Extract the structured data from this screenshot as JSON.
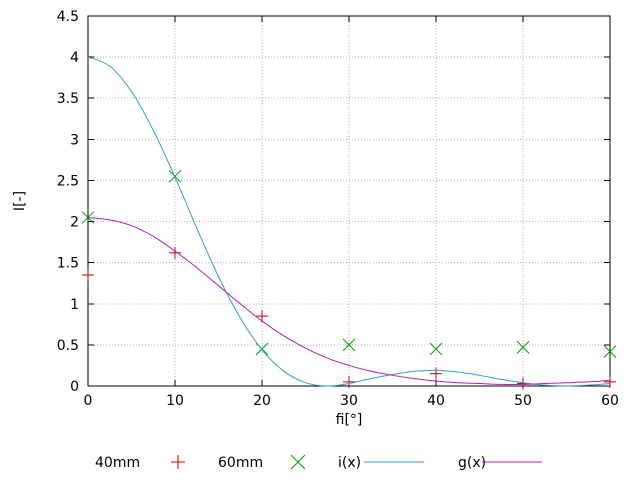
{
  "figure": {
    "background": "#ffffff"
  },
  "chart_data": {
    "type": "line",
    "title": "",
    "xlabel": "fi[°]",
    "ylabel": "I[-]",
    "xlim": [
      0,
      60
    ],
    "ylim": [
      0,
      4.5
    ],
    "xticks": [
      0,
      10,
      20,
      30,
      40,
      50,
      60
    ],
    "yticks": [
      0,
      0.5,
      1,
      1.5,
      2,
      2.5,
      3,
      3.5,
      4,
      4.5
    ],
    "grid": true,
    "legend_position": "bottom",
    "colors": {
      "axis": "#000000",
      "grid": "#b0b0b0"
    },
    "series": [
      {
        "name": "40mm",
        "style": "points",
        "marker": "plus",
        "color": "#c00000",
        "x": [
          0,
          10,
          20,
          30,
          40,
          50,
          60
        ],
        "y": [
          1.35,
          1.62,
          0.85,
          0.05,
          0.15,
          0.03,
          0.05
        ]
      },
      {
        "name": "60mm",
        "style": "points",
        "marker": "x",
        "color": "#00a000",
        "x": [
          0,
          10,
          20,
          30,
          40,
          50,
          60
        ],
        "y": [
          2.05,
          2.55,
          0.45,
          0.5,
          0.45,
          0.47,
          0.42
        ]
      },
      {
        "name": "i(x)",
        "style": "line",
        "color": "#3a9ec1",
        "x": [
          0,
          2.5,
          5,
          7.5,
          10,
          12.5,
          15,
          17.5,
          20,
          22.5,
          25,
          27.5,
          30,
          32.5,
          35,
          37.5,
          40,
          42.5,
          45,
          47.5,
          50,
          52.5,
          55,
          57.5,
          60
        ],
        "y": [
          4.0,
          3.89,
          3.58,
          3.11,
          2.54,
          1.92,
          1.33,
          0.83,
          0.44,
          0.18,
          0.04,
          0.0,
          0.03,
          0.09,
          0.14,
          0.18,
          0.19,
          0.17,
          0.13,
          0.08,
          0.04,
          0.01,
          0.0,
          0.01,
          0.03
        ]
      },
      {
        "name": "g(x)",
        "style": "line",
        "color": "#b41fb4",
        "x": [
          0,
          2.5,
          5,
          7.5,
          10,
          12.5,
          15,
          17.5,
          20,
          22.5,
          25,
          27.5,
          30,
          32.5,
          35,
          37.5,
          40,
          42.5,
          45,
          47.5,
          50,
          52.5,
          55,
          57.5,
          60
        ],
        "y": [
          2.05,
          2.02,
          1.95,
          1.82,
          1.64,
          1.44,
          1.22,
          1.0,
          0.79,
          0.61,
          0.46,
          0.34,
          0.25,
          0.18,
          0.13,
          0.09,
          0.06,
          0.04,
          0.03,
          0.02,
          0.02,
          0.03,
          0.04,
          0.05,
          0.07
        ]
      }
    ]
  }
}
